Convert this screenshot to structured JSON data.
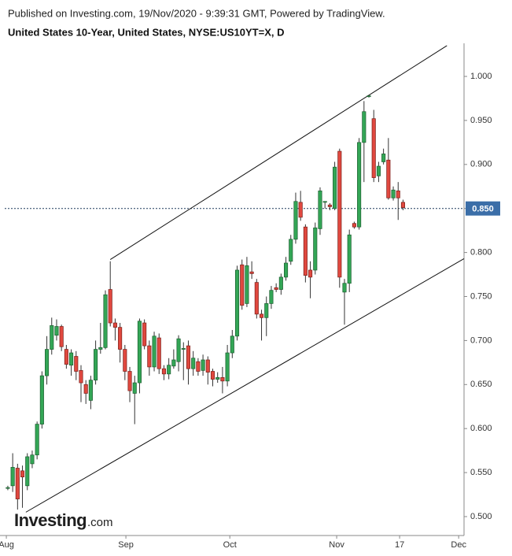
{
  "chart_data": {
    "type": "candlestick",
    "source": "Published on Investing.com, 19/Nov/2020 - 9:39:31 GMT, Powered by TradingView.",
    "title": "United States 10-Year, United States, NYSE:US10YT=X, D",
    "logo": {
      "brand": "Investing",
      "suffix": ".com"
    },
    "up_color": "#33a656",
    "down_color": "#e0483f",
    "open": [
      0.532,
      0.535,
      0.555,
      0.552,
      0.535,
      0.56,
      0.57,
      0.605,
      0.66,
      0.69,
      0.706,
      0.716,
      0.69,
      0.672,
      0.682,
      0.666,
      0.65,
      0.632,
      0.655,
      0.69,
      0.692,
      0.758,
      0.72,
      0.715,
      0.69,
      0.665,
      0.64,
      0.652,
      0.72,
      0.694,
      0.67,
      0.703,
      0.668,
      0.662,
      0.671,
      0.676,
      0.69,
      0.694,
      0.668,
      0.676,
      0.666,
      0.678,
      0.665,
      0.656,
      0.658,
      0.654,
      0.686,
      0.705,
      0.786,
      0.742,
      0.778,
      0.766,
      0.73,
      0.726,
      0.742,
      0.76,
      0.758,
      0.772,
      0.79,
      0.815,
      0.857,
      0.829,
      0.78,
      0.78,
      0.827,
      0.857,
      0.854,
      0.85,
      0.915,
      0.755,
      0.765,
      0.833,
      0.829,
      0.925,
      0.977,
      0.952,
      0.887,
      0.903,
      0.905,
      0.862,
      0.87,
      0.857
    ],
    "high": [
      0.535,
      0.572,
      0.56,
      0.558,
      0.572,
      0.575,
      0.608,
      0.665,
      0.705,
      0.726,
      0.724,
      0.718,
      0.695,
      0.69,
      0.688,
      0.672,
      0.655,
      0.66,
      0.7,
      0.72,
      0.757,
      0.79,
      0.725,
      0.72,
      0.695,
      0.67,
      0.66,
      0.725,
      0.724,
      0.7,
      0.71,
      0.708,
      0.672,
      0.68,
      0.69,
      0.706,
      0.698,
      0.7,
      0.688,
      0.68,
      0.684,
      0.682,
      0.668,
      0.664,
      0.67,
      0.695,
      0.712,
      0.785,
      0.792,
      0.795,
      0.79,
      0.77,
      0.735,
      0.75,
      0.762,
      0.765,
      0.776,
      0.795,
      0.82,
      0.868,
      0.87,
      0.832,
      0.79,
      0.834,
      0.874,
      0.858,
      0.856,
      0.903,
      0.918,
      0.77,
      0.826,
      0.835,
      0.93,
      0.972,
      0.978,
      0.962,
      0.903,
      0.918,
      0.93,
      0.875,
      0.88,
      0.86
    ],
    "low": [
      0.53,
      0.528,
      0.508,
      0.51,
      0.53,
      0.555,
      0.565,
      0.6,
      0.65,
      0.684,
      0.7,
      0.688,
      0.668,
      0.66,
      0.655,
      0.63,
      0.628,
      0.622,
      0.65,
      0.685,
      0.69,
      0.716,
      0.7,
      0.675,
      0.655,
      0.63,
      0.605,
      0.64,
      0.69,
      0.66,
      0.665,
      0.662,
      0.655,
      0.656,
      0.668,
      0.665,
      0.655,
      0.65,
      0.66,
      0.66,
      0.66,
      0.65,
      0.648,
      0.652,
      0.64,
      0.648,
      0.68,
      0.7,
      0.735,
      0.738,
      0.77,
      0.725,
      0.7,
      0.705,
      0.736,
      0.755,
      0.752,
      0.768,
      0.786,
      0.81,
      0.836,
      0.766,
      0.748,
      0.775,
      0.82,
      0.85,
      0.848,
      0.848,
      0.76,
      0.718,
      0.755,
      0.827,
      0.826,
      0.88,
      0.976,
      0.88,
      0.88,
      0.9,
      0.86,
      0.859,
      0.837,
      0.848
    ],
    "close": [
      0.533,
      0.556,
      0.52,
      0.545,
      0.568,
      0.57,
      0.605,
      0.66,
      0.69,
      0.717,
      0.716,
      0.693,
      0.673,
      0.686,
      0.665,
      0.652,
      0.64,
      0.655,
      0.69,
      0.692,
      0.752,
      0.72,
      0.715,
      0.69,
      0.665,
      0.643,
      0.652,
      0.722,
      0.694,
      0.67,
      0.705,
      0.668,
      0.662,
      0.672,
      0.678,
      0.702,
      0.691,
      0.668,
      0.68,
      0.665,
      0.678,
      0.664,
      0.656,
      0.658,
      0.654,
      0.686,
      0.705,
      0.78,
      0.74,
      0.785,
      0.776,
      0.73,
      0.726,
      0.742,
      0.757,
      0.758,
      0.772,
      0.788,
      0.815,
      0.858,
      0.84,
      0.774,
      0.772,
      0.828,
      0.87,
      0.858,
      0.852,
      0.897,
      0.772,
      0.765,
      0.82,
      0.829,
      0.925,
      0.96,
      0.978,
      0.885,
      0.898,
      0.912,
      0.862,
      0.871,
      0.862,
      0.851
    ],
    "last_price": {
      "value": 0.85,
      "label": "0.850"
    },
    "trendlines": [
      {
        "x": [
          21,
          90
        ],
        "y": [
          0.792,
          1.035
        ]
      },
      {
        "x": [
          3.7,
          93.5
        ],
        "y": [
          0.505,
          0.793
        ]
      }
    ],
    "xlim": [
      -1.6,
      93.5
    ],
    "xticks": [
      {
        "value": -0.3,
        "label": "Aug"
      },
      {
        "value": 24.2,
        "label": "Sep"
      },
      {
        "value": 45.5,
        "label": "Oct"
      },
      {
        "value": 67.4,
        "label": "Nov"
      },
      {
        "value": 80.3,
        "label": "17"
      },
      {
        "value": 92.4,
        "label": "Dec"
      }
    ],
    "ylim": [
      0.4785,
      1.0376
    ],
    "yticks": [
      {
        "value": 1.0,
        "label": "1.000"
      },
      {
        "value": 0.95,
        "label": "0.950"
      },
      {
        "value": 0.9,
        "label": "0.900"
      },
      {
        "value": 0.85,
        "label": "0.850"
      },
      {
        "value": 0.8,
        "label": "0.800"
      },
      {
        "value": 0.75,
        "label": "0.750"
      },
      {
        "value": 0.7,
        "label": "0.700"
      },
      {
        "value": 0.65,
        "label": "0.650"
      },
      {
        "value": 0.6,
        "label": "0.600"
      },
      {
        "value": 0.55,
        "label": "0.550"
      },
      {
        "value": 0.5,
        "label": "0.500"
      }
    ]
  }
}
